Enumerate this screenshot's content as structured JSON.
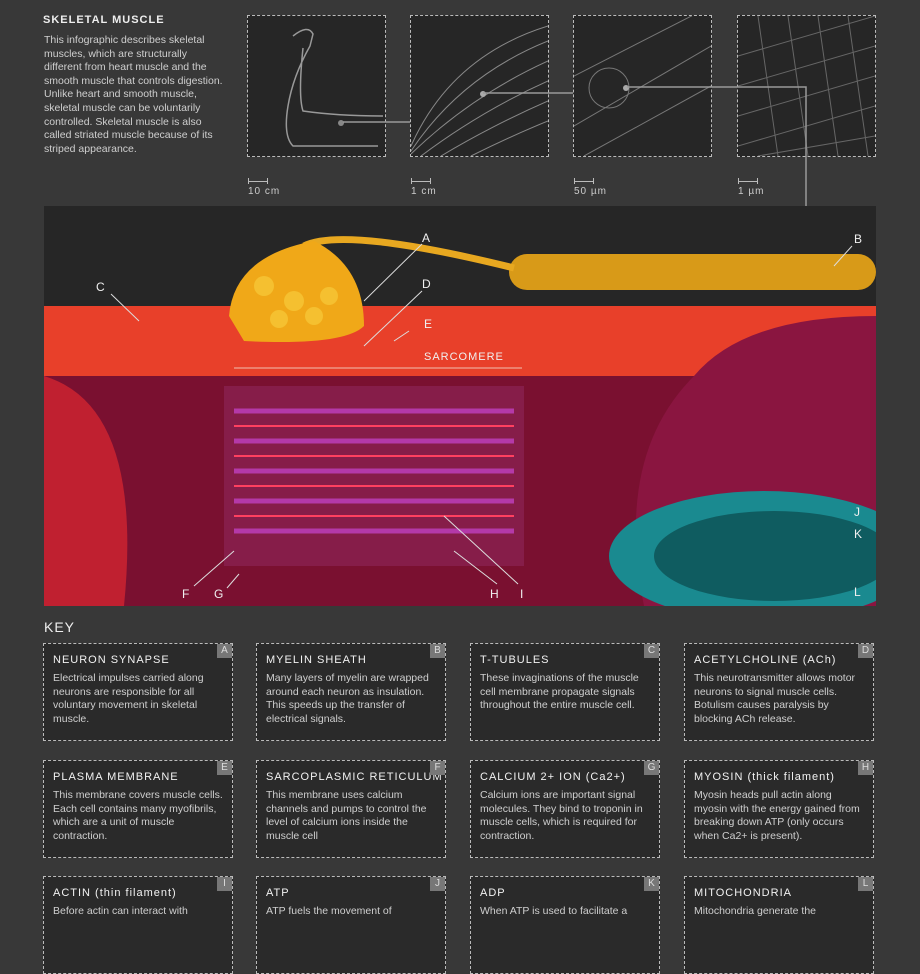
{
  "header": {
    "title": "SKELETAL MUSCLE",
    "intro": "This infographic describes skeletal muscles, which are structurally different from heart muscle and the smooth muscle that controls digestion. Unlike heart and smooth muscle, skeletal muscle can be voluntarily controlled. Skeletal muscle is also called striated muscle because of its striped appearance."
  },
  "scales": [
    "10 cm",
    "1 cm",
    "50 µm",
    "1 µm"
  ],
  "illustration": {
    "labels": [
      "A",
      "B",
      "C",
      "D",
      "E",
      "F",
      "G",
      "H",
      "I",
      "J",
      "K",
      "L"
    ],
    "sarcomere": "SARCOMERE"
  },
  "key": {
    "title": "KEY",
    "cards": [
      {
        "letter": "A",
        "title": "NEURON SYNAPSE",
        "text": "Electrical impulses carried along neurons are responsible for all voluntary movement in skeletal muscle."
      },
      {
        "letter": "B",
        "title": "MYELIN SHEATH",
        "text": "Many layers of myelin are wrapped around each neuron as insulation. This speeds up the transfer of electrical signals."
      },
      {
        "letter": "C",
        "title": "T-TUBULES",
        "text": "These invaginations of the muscle cell membrane propagate signals throughout the entire muscle cell."
      },
      {
        "letter": "D",
        "title": "ACETYLCHOLINE (ACh)",
        "text": "This neurotransmitter allows motor neurons to signal muscle cells. Botulism causes paralysis by blocking ACh release."
      },
      {
        "letter": "E",
        "title": "PLASMA MEMBRANE",
        "text": "This membrane covers muscle cells. Each cell contains many myofibrils, which are a unit of muscle contraction."
      },
      {
        "letter": "F",
        "title": "SARCOPLASMIC RETICULUM",
        "text": "This membrane uses calcium channels and pumps to control the level of calcium ions inside the muscle cell"
      },
      {
        "letter": "G",
        "title": "CALCIUM 2+ ION (Ca2+)",
        "text": "Calcium ions are important signal molecules. They bind to troponin in muscle cells, which is required for contraction."
      },
      {
        "letter": "H",
        "title": "MYOSIN (thick filament)",
        "text": "Myosin heads pull actin along myosin with the energy gained from breaking down ATP (only occurs when Ca2+ is present)."
      },
      {
        "letter": "I",
        "title": "ACTIN (thin filament)",
        "text": "Before actin can interact with"
      },
      {
        "letter": "J",
        "title": "ATP",
        "text": "ATP fuels the movement of"
      },
      {
        "letter": "K",
        "title": "ADP",
        "text": "When ATP is used to facilitate a"
      },
      {
        "letter": "L",
        "title": "MITOCHONDRIA",
        "text": "Mitochondria generate the"
      }
    ]
  }
}
